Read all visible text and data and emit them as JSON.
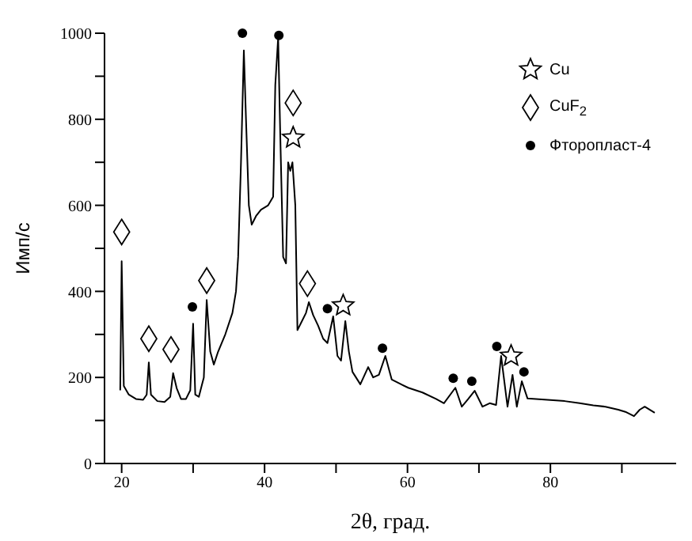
{
  "chart_data": {
    "type": "line",
    "xlabel": "2θ, град.",
    "ylabel": "Имп/с",
    "xlim": [
      17.6,
      97.6
    ],
    "ylim": [
      0,
      1000
    ],
    "xticks": [
      20,
      {
        "value": 30,
        "label": null
      },
      40,
      {
        "value": 50,
        "label": null
      },
      60,
      {
        "value": 70,
        "label": null
      },
      80,
      {
        "value": 90,
        "label": null
      }
    ],
    "yticks": [
      0,
      {
        "value": 100,
        "label": null
      },
      200,
      {
        "value": 300,
        "label": null
      },
      400,
      {
        "value": 500,
        "label": null
      },
      600,
      {
        "value": 700,
        "label": null
      },
      800,
      {
        "value": 900,
        "label": null
      },
      1000
    ],
    "grid": false,
    "legend": "top right",
    "marker": "none",
    "line_style": "solid",
    "series": [
      {
        "color": "#000000",
        "x": [
          19.8,
          20.0,
          20.3,
          21,
          22,
          23,
          23.5,
          23.8,
          24.1,
          25,
          26,
          26.8,
          27.2,
          27.7,
          28.3,
          29,
          29.6,
          30,
          30.3,
          30.8,
          31.5,
          31.9,
          32.4,
          32.9,
          33.5,
          34.5,
          35.5,
          36,
          36.3,
          36.7,
          37.1,
          37.4,
          37.8,
          38.2,
          38.8,
          39.5,
          40.5,
          41.2,
          41.5,
          41.9,
          42.2,
          42.6,
          43,
          43.3,
          43.6,
          43.9,
          44.3,
          44.6,
          45.2,
          45.8,
          46.2,
          46.8,
          47.5,
          48.2,
          48.8,
          49.6,
          50.2,
          50.7,
          51.3,
          51.8,
          52.3,
          53.4,
          54.5,
          55.2,
          56,
          56.9,
          57.8,
          59,
          60.1,
          62.1,
          64,
          65.1,
          66.7,
          67.6,
          68.5,
          69.4,
          70.5,
          71.5,
          72.4,
          73.1,
          74,
          74.7,
          75.3,
          76,
          76.8,
          78,
          80.4,
          82,
          84.1,
          86,
          87.7,
          89.5,
          90.5,
          91.7,
          92.5,
          93.2,
          94.6
        ],
        "values": [
          170,
          470,
          180,
          160,
          150,
          148,
          160,
          235,
          160,
          145,
          143,
          155,
          210,
          175,
          150,
          150,
          170,
          325,
          160,
          155,
          200,
          380,
          260,
          230,
          260,
          300,
          350,
          400,
          480,
          700,
          960,
          800,
          600,
          555,
          575,
          590,
          600,
          620,
          880,
          990,
          760,
          480,
          465,
          700,
          680,
          700,
          600,
          310,
          330,
          350,
          375,
          345,
          320,
          290,
          280,
          342,
          250,
          239,
          331,
          260,
          213,
          184,
          224,
          200,
          206,
          250,
          195,
          185,
          176,
          165,
          150,
          140,
          176,
          132,
          150,
          169,
          132,
          140,
          136,
          250,
          132,
          206,
          132,
          191,
          151,
          150,
          147,
          145,
          140,
          135,
          132,
          125,
          120,
          110,
          125,
          132,
          118
        ]
      },
      {
        "type": "scatter",
        "name": "Cu",
        "color": "#000000",
        "marker": "star",
        "x": [
          44.0,
          51.0,
          74.5
        ],
        "values": [
          757,
          367,
          250
        ]
      },
      {
        "type": "scatter",
        "name": "CuF$_{2}$",
        "color": "#000000",
        "marker": "diamond",
        "x": [
          20.0,
          23.8,
          26.9,
          31.9,
          44.0,
          46.0
        ],
        "values": [
          538,
          290,
          265,
          425,
          838,
          418
        ]
      },
      {
        "type": "scatter",
        "name": "Фторопласт-4",
        "color": "#000000",
        "marker": "circle",
        "x": [
          36.9,
          42.0,
          29.9,
          48.8,
          56.5,
          66.4,
          69.0,
          72.5,
          76.3
        ],
        "values": [
          1000,
          995,
          364,
          360,
          268,
          198,
          191,
          272,
          213
        ]
      }
    ]
  }
}
